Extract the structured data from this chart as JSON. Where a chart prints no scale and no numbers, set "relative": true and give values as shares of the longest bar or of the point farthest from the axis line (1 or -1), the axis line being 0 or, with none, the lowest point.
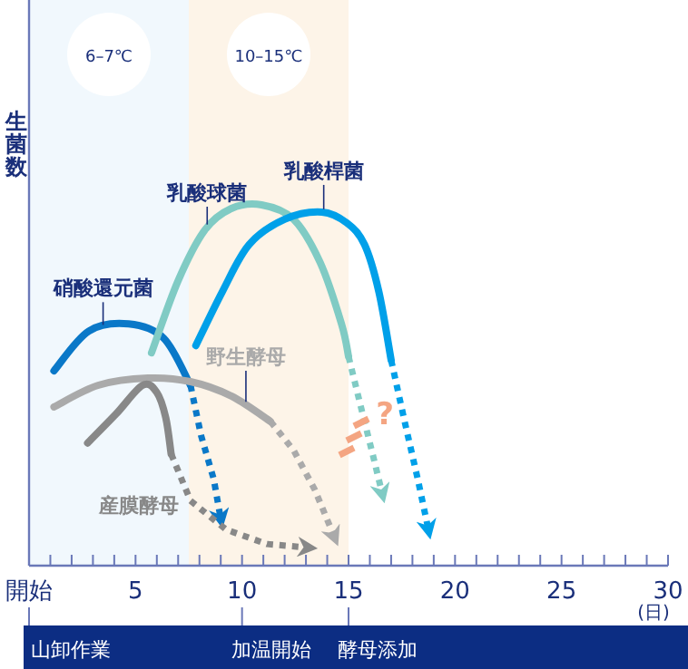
{
  "chart_data": {
    "type": "line",
    "relative": true,
    "ylabel": "生菌数",
    "xlabel": "(日)",
    "xlim": [
      0,
      30
    ],
    "xticks": [
      {
        "value": 0,
        "label": "開始"
      },
      {
        "value": 1,
        "label": null
      },
      {
        "value": 2,
        "label": null
      },
      {
        "value": 3,
        "label": null
      },
      {
        "value": 4,
        "label": null
      },
      5,
      {
        "value": 6,
        "label": null
      },
      {
        "value": 7,
        "label": null
      },
      {
        "value": 8,
        "label": null
      },
      {
        "value": 9,
        "label": null
      },
      10,
      {
        "value": 11,
        "label": null
      },
      {
        "value": 12,
        "label": null
      },
      {
        "value": 13,
        "label": null
      },
      {
        "value": 14,
        "label": null
      },
      15,
      {
        "value": 16,
        "label": null
      },
      {
        "value": 17,
        "label": null
      },
      {
        "value": 18,
        "label": null
      },
      {
        "value": 19,
        "label": null
      },
      20,
      {
        "value": 21,
        "label": null
      },
      {
        "value": 22,
        "label": null
      },
      {
        "value": 23,
        "label": null
      },
      {
        "value": 24,
        "label": null
      },
      25,
      {
        "value": 26,
        "label": null
      },
      {
        "value": 27,
        "label": null
      },
      {
        "value": 28,
        "label": null
      },
      {
        "value": 29,
        "label": null
      },
      30
    ],
    "bands": [
      {
        "axis": "x",
        "from": 0,
        "to": 7.5,
        "label": "6–7℃",
        "color": "#f1f8fd"
      },
      {
        "axis": "x",
        "from": 7.5,
        "to": 15,
        "label": "10–15℃",
        "color": "#fdf4e8"
      }
    ],
    "series": [
      {
        "name": "硝酸還元菌",
        "color": "#0a78c8",
        "line_style": "solid",
        "x": [
          1.17,
          2.8,
          4.67,
          6.33,
          7.58
        ],
        "values": [
          0.54,
          0.65,
          0.67,
          0.63,
          0.5
        ]
      },
      {
        "color": "#0a78c8",
        "line_style": "dotted",
        "x": [
          7.58,
          8.08,
          8.67,
          9.0
        ],
        "values": [
          0.5,
          0.36,
          0.24,
          0.13
        ]
      },
      {
        "name": "乳酸球菌",
        "color": "#80cbc4",
        "line_style": "solid",
        "x": [
          5.75,
          7.0,
          8.25,
          9.5,
          10.92,
          12.42,
          13.67,
          14.67,
          15.0
        ],
        "values": [
          0.59,
          0.79,
          0.93,
          0.99,
          1.0,
          0.96,
          0.84,
          0.67,
          0.58
        ]
      },
      {
        "color": "#80cbc4",
        "line_style": "dotted",
        "x": [
          15.0,
          15.58,
          16.17,
          16.58
        ],
        "values": [
          0.58,
          0.44,
          0.3,
          0.2
        ]
      },
      {
        "name": "乳酸桿菌",
        "color": "#00a0e9",
        "line_style": "solid",
        "x": [
          7.83,
          9.08,
          10.33,
          12.0,
          13.75,
          14.92,
          15.75,
          16.42,
          17.0
        ],
        "values": [
          0.61,
          0.76,
          0.89,
          0.96,
          0.98,
          0.95,
          0.89,
          0.76,
          0.57
        ]
      },
      {
        "color": "#00a0e9",
        "line_style": "dotted",
        "x": [
          17.0,
          17.67,
          18.25,
          18.75
        ],
        "values": [
          0.57,
          0.39,
          0.24,
          0.1
        ]
      },
      {
        "name": "野生酵母",
        "color": "#aaaaaa",
        "line_style": "solid",
        "x": [
          1.17,
          3.25,
          5.58,
          7.58,
          9.5,
          11.33
        ],
        "values": [
          0.44,
          0.5,
          0.52,
          0.51,
          0.47,
          0.4
        ]
      },
      {
        "color": "#aaaaaa",
        "line_style": "dotted",
        "x": [
          11.33,
          12.42,
          13.42,
          14.33
        ],
        "values": [
          0.4,
          0.32,
          0.21,
          0.08
        ]
      },
      {
        "name": "産膜酵母",
        "color": "#888888",
        "line_style": "solid",
        "x": [
          2.75,
          4.08,
          5.33,
          6.0,
          6.42,
          6.67
        ],
        "values": [
          0.34,
          0.42,
          0.5,
          0.48,
          0.41,
          0.31
        ]
      },
      {
        "color": "#888888",
        "line_style": "dotted",
        "x": [
          6.67,
          7.58,
          9.25,
          11.17,
          13.08
        ],
        "values": [
          0.31,
          0.18,
          0.1,
          0.06,
          0.05
        ]
      }
    ],
    "annotations": [
      "?"
    ],
    "ref_lines": [
      {
        "axis": "x",
        "value": 0,
        "label": "山卸作業"
      },
      {
        "axis": "x",
        "value": 10,
        "label": "加温開始"
      },
      {
        "axis": "x",
        "value": 15,
        "label": "酵母添加"
      }
    ]
  }
}
